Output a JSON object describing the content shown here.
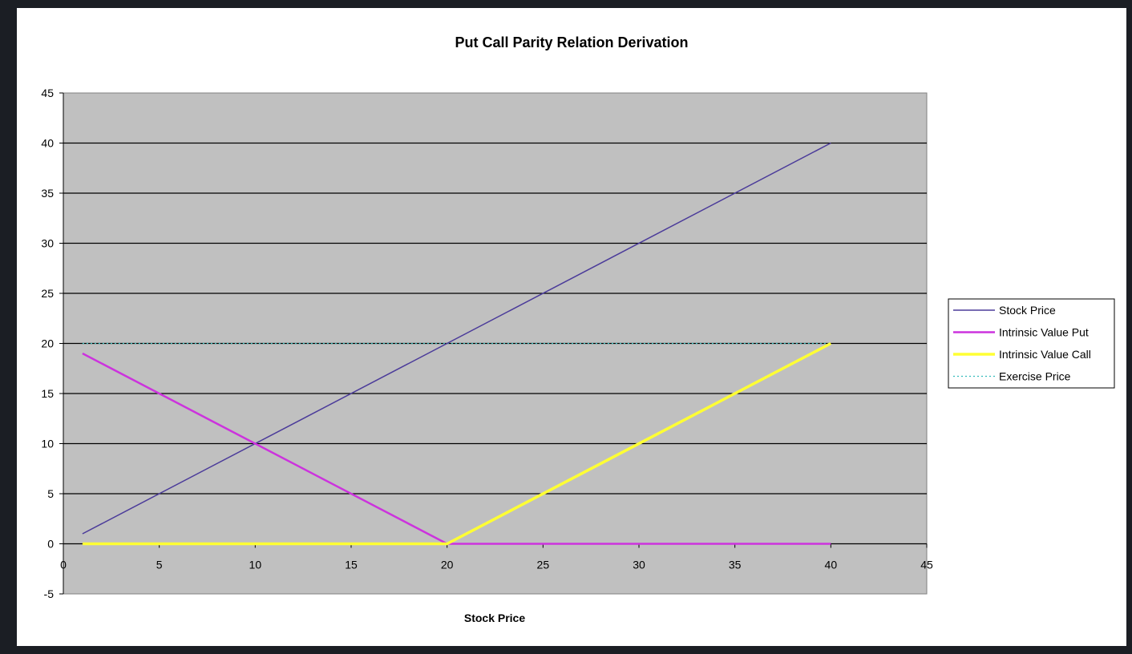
{
  "chart_data": {
    "type": "line",
    "title": "Put Call Parity Relation Derivation",
    "xlabel": "Stock Price",
    "ylabel": "",
    "xlim": [
      0,
      45
    ],
    "ylim": [
      -5,
      45
    ],
    "x_ticks": [
      0,
      5,
      10,
      15,
      20,
      25,
      30,
      35,
      40,
      45
    ],
    "y_ticks": [
      -5,
      0,
      5,
      10,
      15,
      20,
      25,
      30,
      35,
      40,
      45
    ],
    "grid": "horizontal",
    "legend_position": "right",
    "plot_background": "#c0c0c0",
    "series": [
      {
        "name": "Stock Price",
        "color": "#4b3b9a",
        "style": "solid",
        "x": [
          1,
          40
        ],
        "y": [
          1,
          40
        ]
      },
      {
        "name": "Intrinsic Value Put",
        "color": "#cc33dd",
        "style": "solid",
        "x": [
          1,
          20,
          40
        ],
        "y": [
          19,
          0,
          0
        ]
      },
      {
        "name": "Intrinsic Value Call",
        "color": "#ffff33",
        "style": "solid",
        "x": [
          1,
          20,
          40
        ],
        "y": [
          0,
          0,
          20
        ]
      },
      {
        "name": "Exercise Price",
        "color": "#33bbbb",
        "style": "dotted",
        "x": [
          1,
          40
        ],
        "y": [
          20,
          20
        ]
      }
    ]
  }
}
